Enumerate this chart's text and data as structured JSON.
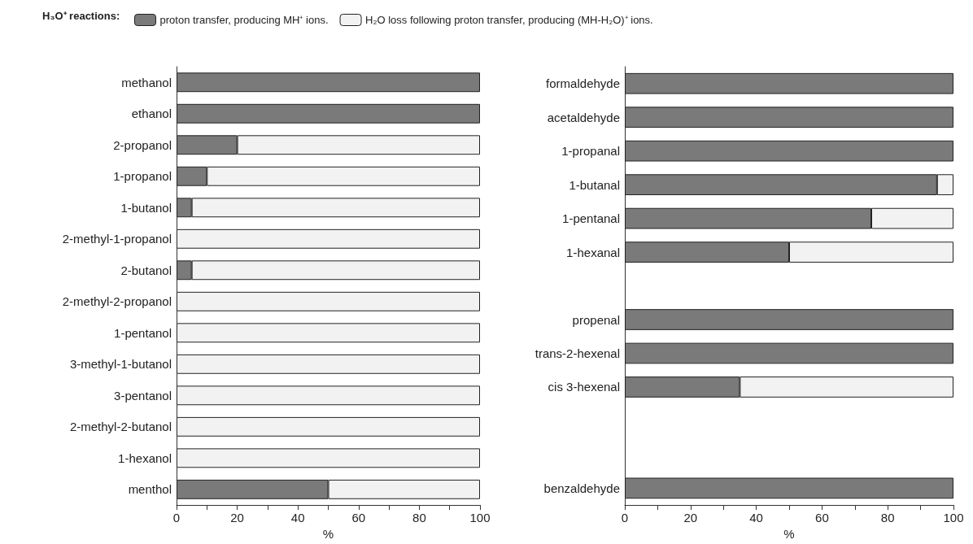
{
  "chart_data": [
    {
      "type": "bar",
      "orientation": "horizontal",
      "stacked": true,
      "legend_title": "H₃O⁺ reactions:",
      "legend": "top",
      "xlabel": "%",
      "grid": false,
      "categories": [
        "methanol",
        "ethanol",
        "2-propanol",
        "1-propanol",
        "1-butanol",
        "2-methyl-1-propanol",
        "2-butanol",
        "2-methyl-2-propanol",
        "1-pentanol",
        "3-methyl-1-butanol",
        "3-pentanol",
        "2-methyl-2-butanol",
        "1-hexanol",
        "menthol"
      ],
      "series": [
        {
          "name": "proton transfer, producing MH⁺ ions.",
          "color": "#7a7a7a",
          "values": [
            100,
            100,
            20,
            10,
            5,
            0,
            5,
            0,
            0,
            0,
            0,
            0,
            0,
            50
          ]
        },
        {
          "name": "H₂O loss following proton transfer, producing (MH-H₂O)⁺ ions.",
          "color": "#f2f2f2",
          "values": [
            0,
            0,
            80,
            90,
            95,
            100,
            95,
            100,
            100,
            100,
            100,
            100,
            100,
            50
          ]
        }
      ],
      "xlim": [
        0,
        100
      ],
      "xticks": [
        0,
        {
          "value": 10,
          "label": null
        },
        20,
        {
          "value": 30,
          "label": null
        },
        40,
        {
          "value": 50,
          "label": null
        },
        60,
        {
          "value": 70,
          "label": null
        },
        80,
        {
          "value": 90,
          "label": null
        },
        100
      ]
    },
    {
      "type": "bar",
      "orientation": "horizontal",
      "stacked": true,
      "xlabel": "%",
      "grid": false,
      "categories": [
        "formaldehyde",
        "acetaldehyde",
        "1-propanal",
        "1-butanal",
        "1-pentanal",
        "1-hexanal",
        null,
        "propenal",
        "trans-2-hexenal",
        "cis 3-hexenal",
        null,
        null,
        "benzaldehyde"
      ],
      "series": [
        {
          "color": "#7a7a7a",
          "values": [
            100,
            100,
            100,
            95,
            75,
            50,
            null,
            100,
            100,
            35,
            null,
            null,
            100
          ]
        },
        {
          "color": "#f2f2f2",
          "values": [
            0,
            0,
            0,
            5,
            25,
            50,
            null,
            0,
            0,
            65,
            null,
            null,
            0
          ]
        }
      ],
      "xlim": [
        0,
        100
      ],
      "xticks": [
        0,
        {
          "value": 10,
          "label": null
        },
        20,
        {
          "value": 30,
          "label": null
        },
        40,
        {
          "value": 50,
          "label": null
        },
        60,
        {
          "value": 70,
          "label": null
        },
        80,
        {
          "value": 90,
          "label": null
        },
        100
      ]
    }
  ]
}
